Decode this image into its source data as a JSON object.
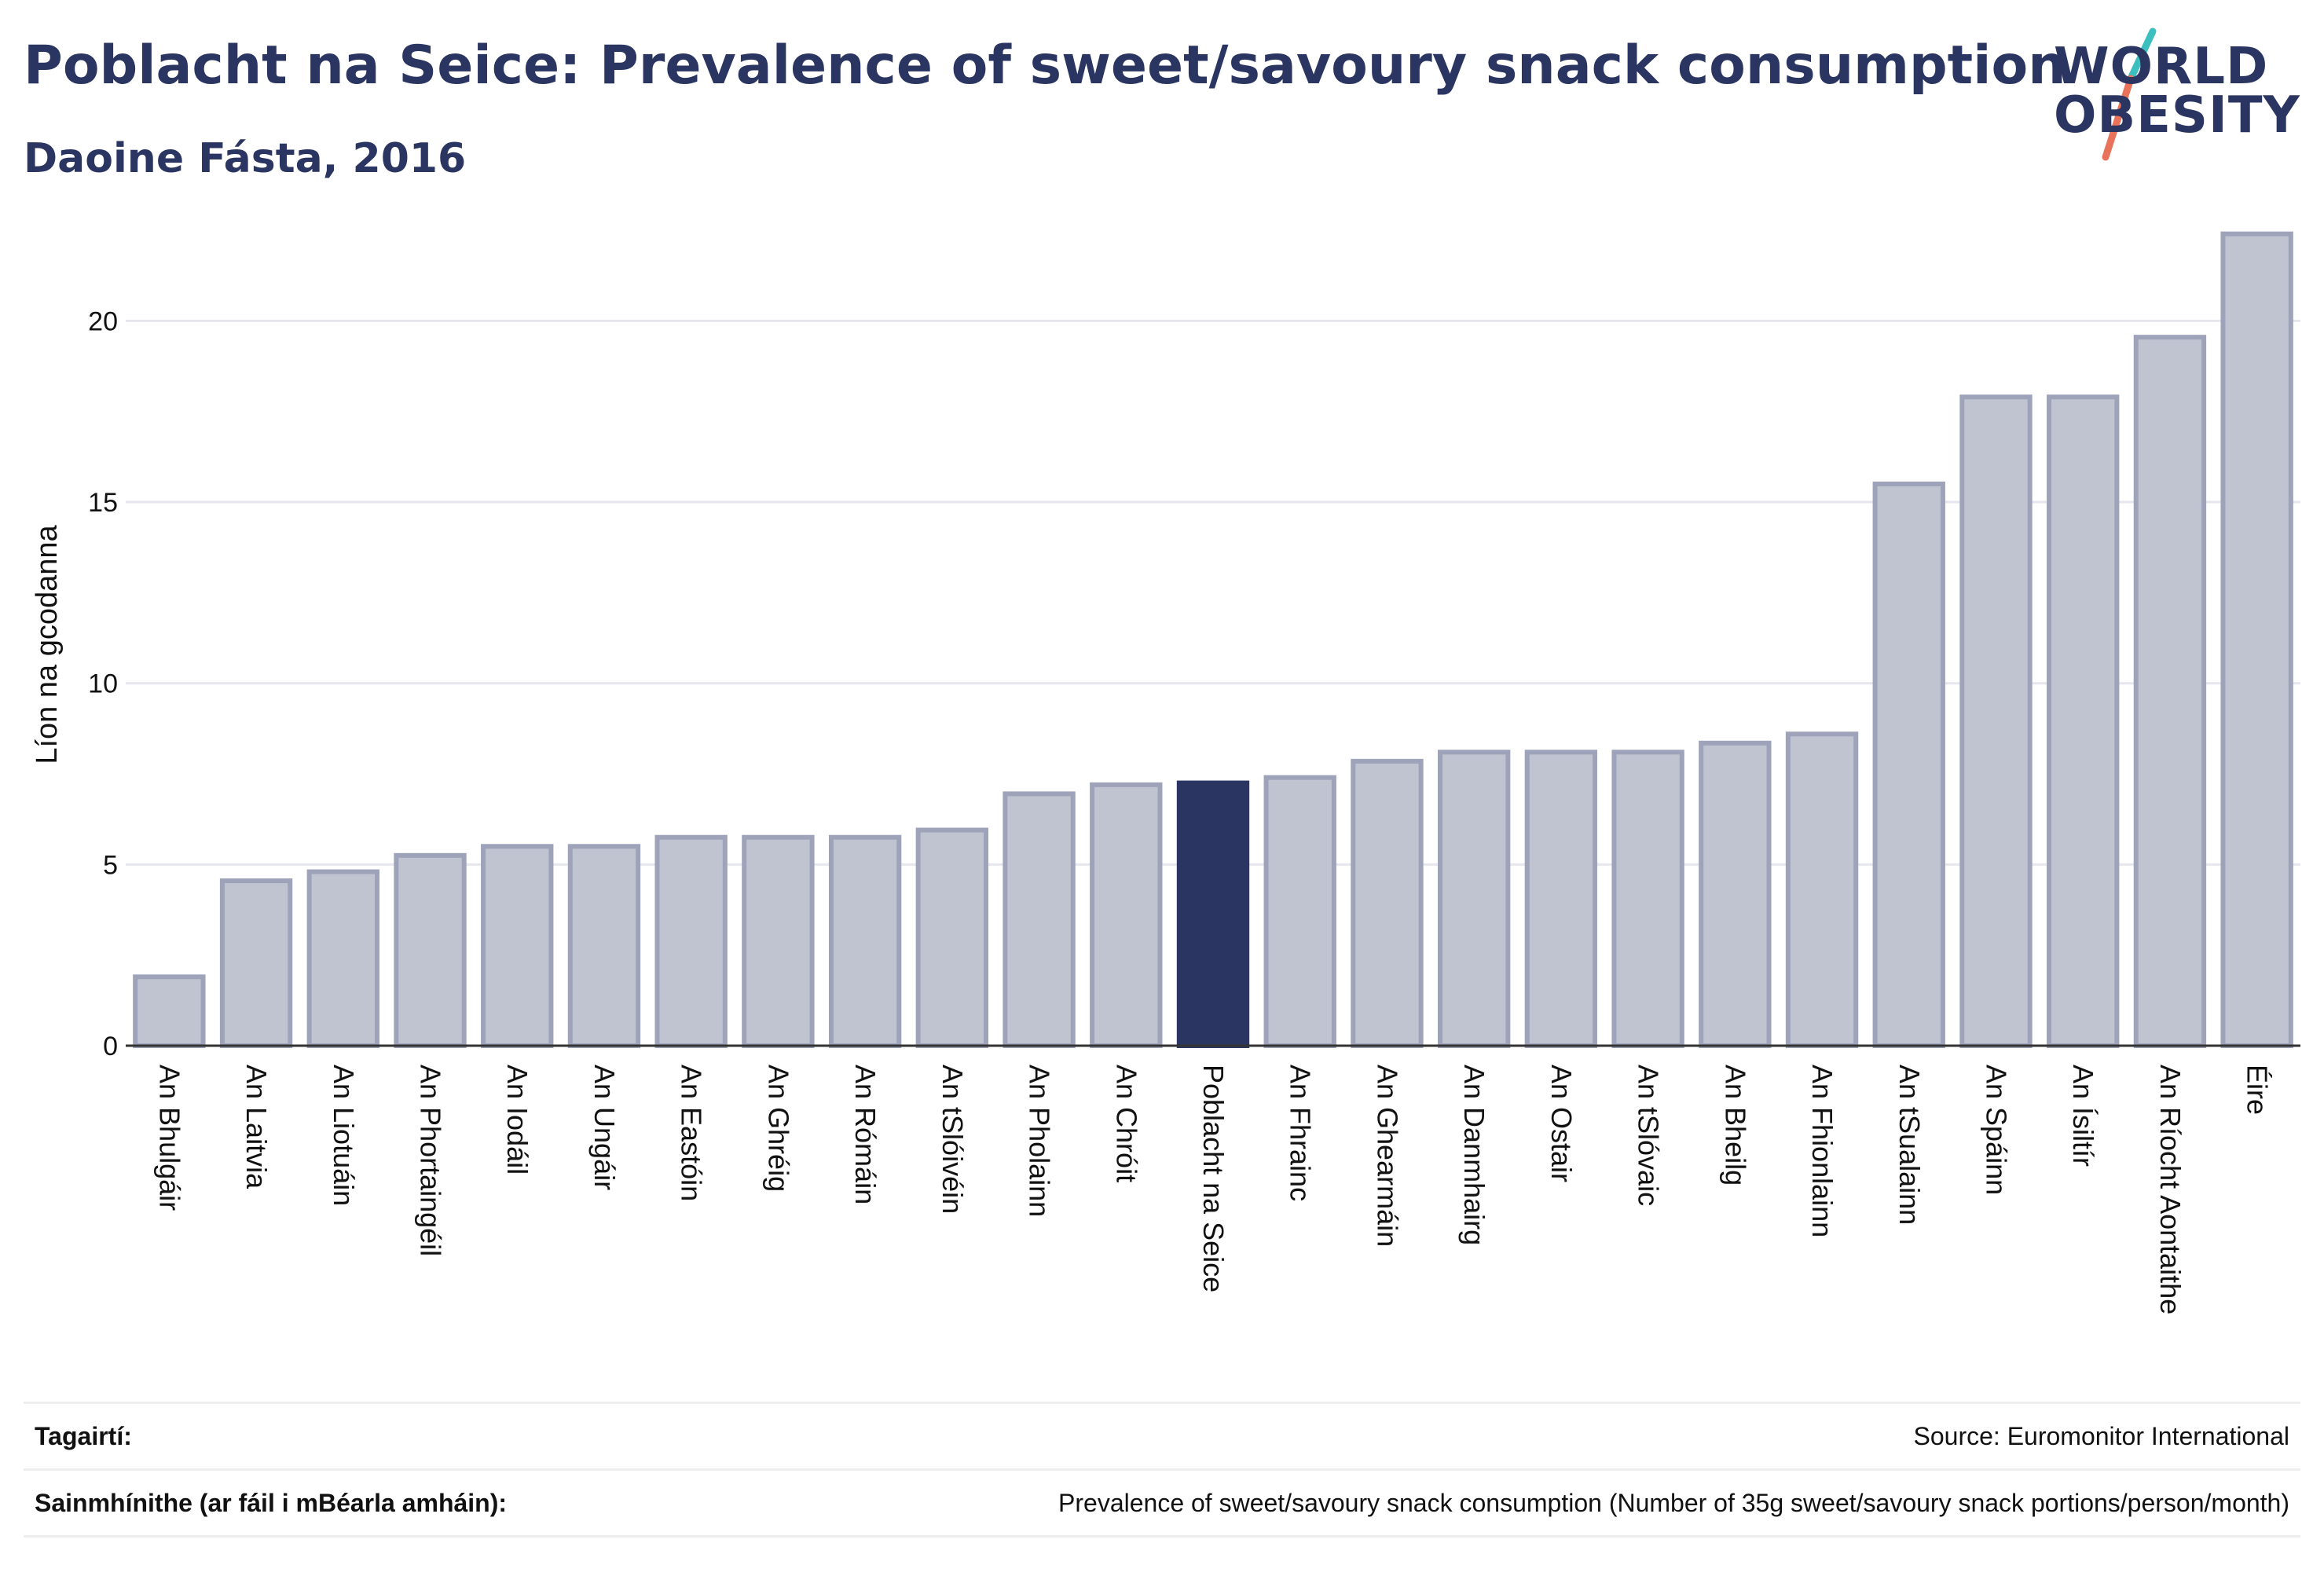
{
  "header": {
    "title": "Poblacht na Seice: Prevalence of sweet/savoury snack consumption",
    "subtitle": "Daoine Fásta, 2016"
  },
  "logo": {
    "line1": "WORLD",
    "line2": "OBESITY",
    "colors": {
      "text": "#2b3561",
      "slash_top": "#3bbfbf",
      "slash_bottom": "#e8735a"
    }
  },
  "colors": {
    "bar_fill": "#c0c3d0",
    "bar_stroke": "#9ea3ba",
    "highlight": "#2b3561",
    "grid": "#e6e6ee",
    "axis": "#333333",
    "text": "#2b3561"
  },
  "chart_data": {
    "type": "bar",
    "title": "Poblacht na Seice: Prevalence of sweet/savoury snack consumption",
    "subtitle": "Daoine Fásta, 2016",
    "xlabel": "",
    "ylabel": "Líon na gcodanna",
    "ylim": [
      0,
      23
    ],
    "yticks": [
      0,
      5,
      10,
      15,
      20
    ],
    "grid": true,
    "highlight": "Poblacht na Seice",
    "categories": [
      "An Bhulgáir",
      "An Laitvia",
      "An Liotuáin",
      "An Phortaingéil",
      "An Iodáil",
      "An Ungáir",
      "An Eastóin",
      "An Ghréig",
      "An Rómáin",
      "An tSlóivéin",
      "An Pholainn",
      "An Chróit",
      "Poblacht na Seice",
      "An Fhrainc",
      "An Ghearmáin",
      "An Danmhairg",
      "An Ostair",
      "An tSlóvaic",
      "An Bheilg",
      "An Fhionlainn",
      "An tSualainn",
      "An Spáinn",
      "An Ísiltír",
      "An Ríocht Aontaithe",
      "Éire"
    ],
    "values": [
      1.9,
      4.55,
      4.8,
      5.25,
      5.5,
      5.5,
      5.75,
      5.75,
      5.75,
      5.95,
      6.95,
      7.2,
      7.25,
      7.4,
      7.85,
      8.1,
      8.1,
      8.1,
      8.35,
      8.6,
      15.5,
      17.9,
      17.9,
      19.55,
      22.4
    ]
  },
  "footer": {
    "references_label": "Tagairtí:",
    "references_value": "Source: Euromonitor International",
    "definitions_label": "Sainmhínithe (ar fáil i mBéarla amháin):",
    "definitions_value": "Prevalence of sweet/savoury snack consumption (Number of 35g sweet/savoury snack portions/person/month)"
  }
}
